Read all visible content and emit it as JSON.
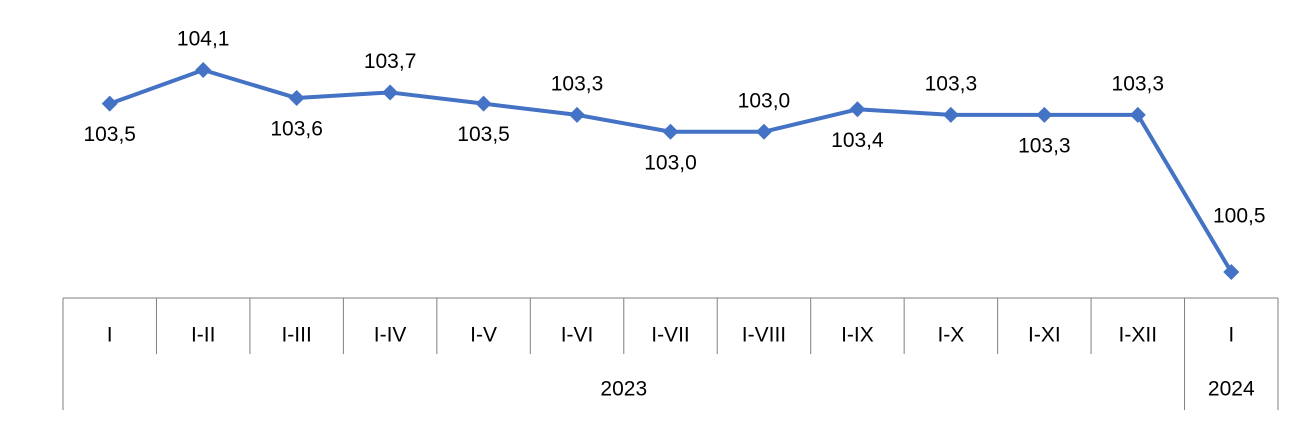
{
  "chart_data": {
    "type": "line",
    "categories": [
      "I",
      "I-II",
      "I-III",
      "I-IV",
      "I-V",
      "I-VI",
      "I-VII",
      "I-VIII",
      "I-IX",
      "I-X",
      "I-XI",
      "I-XII",
      "I"
    ],
    "year_groups": [
      {
        "label": "2023",
        "span": 12
      },
      {
        "label": "2024",
        "span": 1
      }
    ],
    "series": [
      {
        "values": [
          103.5,
          104.1,
          103.6,
          103.7,
          103.5,
          103.3,
          103.0,
          103.0,
          103.4,
          103.3,
          103.3,
          103.3,
          100.5
        ],
        "labels": [
          "103,5",
          "104,1",
          "103,6",
          "103,7",
          "103,5",
          "103,3",
          "103,0",
          "103,0",
          "103,4",
          "103,3",
          "103,3",
          "103,3",
          "100,5"
        ],
        "label_positions": [
          "below",
          "above",
          "below",
          "above",
          "below",
          "above",
          "below",
          "above",
          "below",
          "above",
          "below",
          "above",
          "above"
        ],
        "color": "#4472c4",
        "marker": "diamond"
      }
    ],
    "title": "",
    "xlabel": "",
    "ylabel": "",
    "grid": false,
    "legend": "none"
  }
}
